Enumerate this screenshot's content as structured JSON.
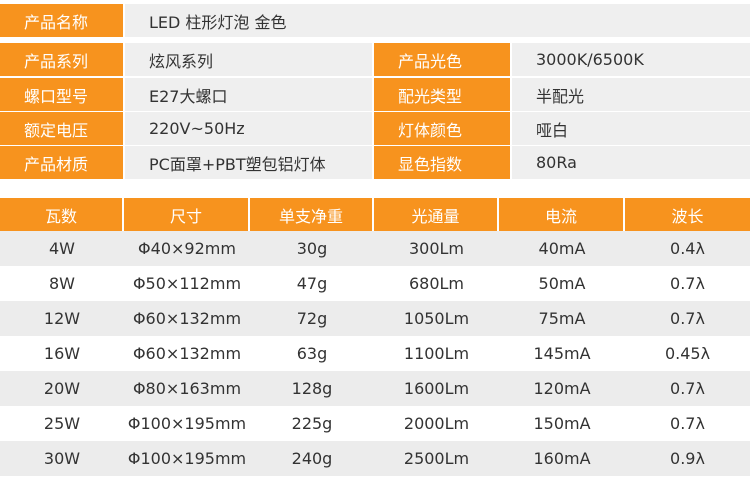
{
  "spec": {
    "rows": [
      [
        "产品名称",
        "LED 柱形灯泡 金色"
      ],
      [
        "产品系列",
        "炫风系列",
        "产品光色",
        "3000K/6500K"
      ],
      [
        "螺口型号",
        "E27大螺口",
        "配光类型",
        "半配光"
      ],
      [
        "额定电压",
        "220V~50Hz",
        "灯体颜色",
        "哑白"
      ],
      [
        "产品材质",
        "PC面罩+PBT塑包铝灯体",
        "显色指数",
        "80Ra"
      ]
    ]
  },
  "table": {
    "header": [
      "瓦数",
      "尺寸",
      "单支净重",
      "光通量",
      "电流",
      "波长"
    ],
    "rows": [
      [
        "4W",
        "Φ40×92mm",
        "30g",
        "300Lm",
        "40mA",
        "0.4λ"
      ],
      [
        "8W",
        "Φ50×112mm",
        "47g",
        "680Lm",
        "50mA",
        "0.7λ"
      ],
      [
        "12W",
        "Φ60×132mm",
        "72g",
        "1050Lm",
        "75mA",
        "0.7λ"
      ],
      [
        "16W",
        "Φ60×132mm",
        "63g",
        "1100Lm",
        "145mA",
        "0.45λ"
      ],
      [
        "20W",
        "Φ80×163mm",
        "128g",
        "1600Lm",
        "120mA",
        "0.7λ"
      ],
      [
        "25W",
        "Φ100×195mm",
        "225g",
        "2000Lm",
        "150mA",
        "0.7λ"
      ],
      [
        "30W",
        "Φ100×195mm",
        "240g",
        "2500Lm",
        "160mA",
        "0.9λ"
      ]
    ]
  }
}
